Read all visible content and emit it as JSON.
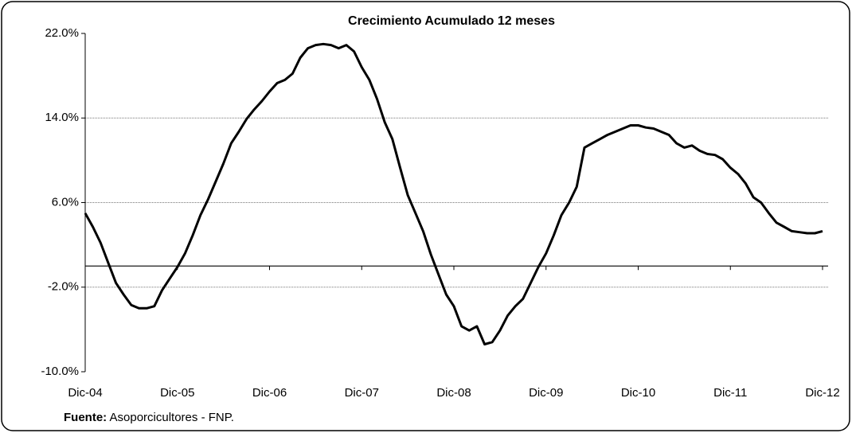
{
  "chart_data": {
    "type": "line",
    "title": "Crecimiento Acumulado 12 meses",
    "source_label": "Fuente:",
    "source_text": "Asoporcicultores - FNP.",
    "color": "#000000",
    "grid": true,
    "categories": [
      "Dic-04",
      null,
      null,
      null,
      null,
      null,
      null,
      null,
      null,
      null,
      null,
      null,
      "Dic-05",
      null,
      null,
      null,
      null,
      null,
      null,
      null,
      null,
      null,
      null,
      null,
      "Dic-06",
      null,
      null,
      null,
      null,
      null,
      null,
      null,
      null,
      null,
      null,
      null,
      "Dic-07",
      null,
      null,
      null,
      null,
      null,
      null,
      null,
      null,
      null,
      null,
      null,
      "Dic-08",
      null,
      null,
      null,
      null,
      null,
      null,
      null,
      null,
      null,
      null,
      null,
      "Dic-09",
      null,
      null,
      null,
      null,
      null,
      null,
      null,
      null,
      null,
      null,
      null,
      "Dic-10",
      null,
      null,
      null,
      null,
      null,
      null,
      null,
      null,
      null,
      null,
      null,
      "Dic-11",
      null,
      null,
      null,
      null,
      null,
      null,
      null,
      null,
      null,
      null,
      null,
      "Dic-12"
    ],
    "values": [
      5.0,
      3.7,
      2.2,
      0.3,
      -1.6,
      -2.7,
      -3.7,
      -4.0,
      -4.0,
      -3.8,
      -2.3,
      -1.2,
      -0.1,
      1.2,
      2.9,
      4.8,
      6.3,
      8.0,
      9.7,
      11.6,
      12.7,
      13.9,
      14.8,
      15.6,
      16.5,
      17.3,
      17.6,
      18.2,
      19.7,
      20.6,
      20.9,
      21.0,
      20.9,
      20.6,
      20.9,
      20.3,
      18.8,
      17.6,
      15.8,
      13.6,
      12.0,
      9.3,
      6.7,
      5.0,
      3.3,
      1.1,
      -0.8,
      -2.7,
      -3.8,
      -5.7,
      -6.1,
      -5.7,
      -7.4,
      -7.2,
      -6.1,
      -4.7,
      -3.8,
      -3.1,
      -1.6,
      -0.1,
      1.2,
      2.9,
      4.8,
      6.0,
      7.5,
      11.2,
      11.6,
      12.0,
      12.4,
      12.7,
      13.0,
      13.3,
      13.3,
      13.1,
      13.0,
      12.7,
      12.4,
      11.6,
      11.2,
      11.4,
      10.9,
      10.6,
      10.5,
      10.1,
      9.3,
      8.7,
      7.8,
      6.5,
      6.0,
      5.0,
      4.1,
      3.7,
      3.3,
      3.2,
      3.1,
      3.1,
      3.3
    ],
    "ylim": [
      -10,
      22
    ],
    "yticks": [
      {
        "value": -10,
        "label": "-10.0%"
      },
      {
        "value": -2,
        "label": "-2.0%"
      },
      {
        "value": 6,
        "label": "6.0%"
      },
      {
        "value": 14,
        "label": "14.0%"
      },
      {
        "value": 22,
        "label": "22.0%"
      }
    ]
  }
}
